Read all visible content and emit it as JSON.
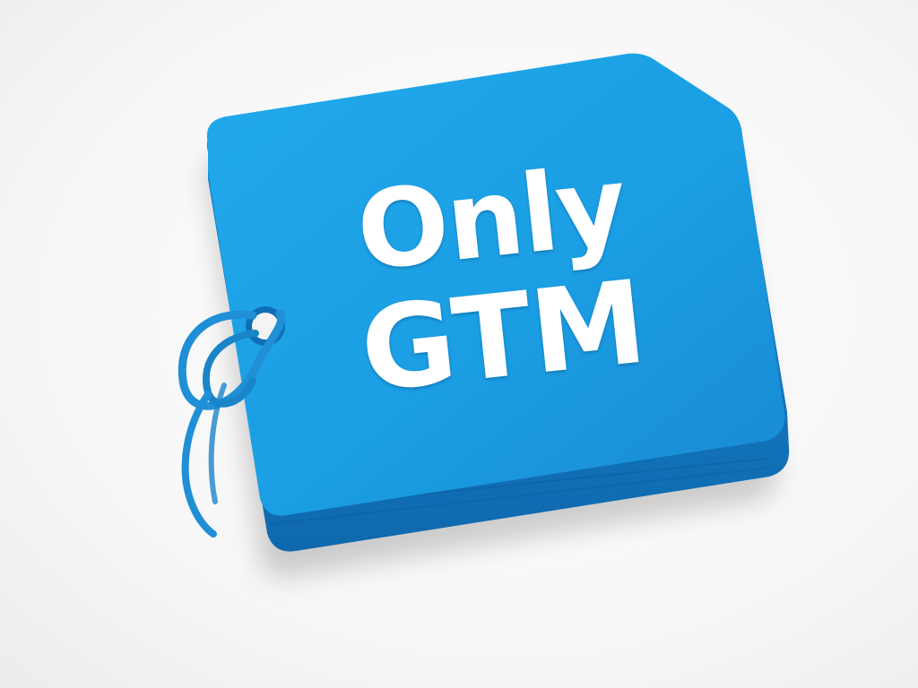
{
  "tag": {
    "line1": "Only",
    "line2": "GTM",
    "color": "#1b9ee3",
    "edge_color": "#1478c0",
    "string_color": "#1f8fd6",
    "text_color": "#ffffff"
  },
  "background_color": "#f6f6f6"
}
